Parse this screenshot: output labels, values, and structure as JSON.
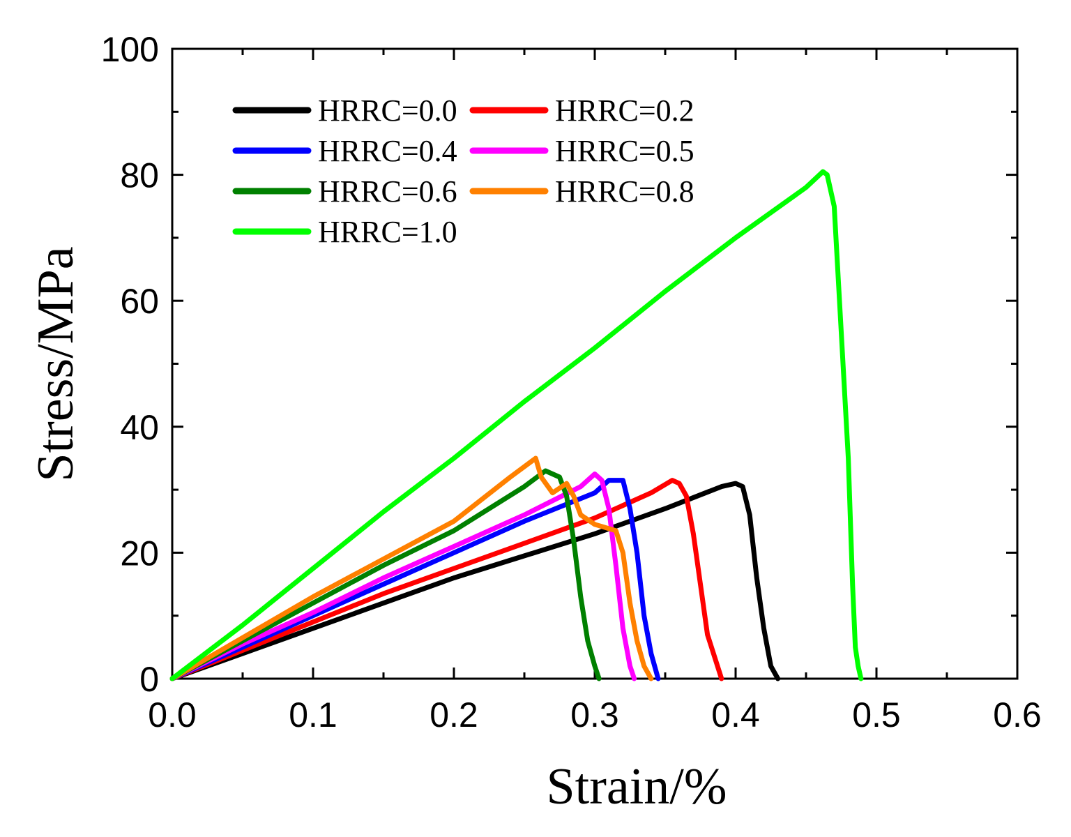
{
  "chart_data": {
    "type": "line",
    "title": "",
    "xlabel": "Strain/%",
    "ylabel": "Stress/MPa",
    "xlim": [
      0.0,
      0.6
    ],
    "ylim": [
      0,
      100
    ],
    "xticks": [
      "0.0",
      "0.1",
      "0.2",
      "0.3",
      "0.4",
      "0.5",
      "0.6"
    ],
    "yticks": [
      "0",
      "20",
      "40",
      "60",
      "80",
      "100"
    ],
    "legend_position": "top-left",
    "series": [
      {
        "name": "HRRC=0.0",
        "color": "#000000",
        "x": [
          0,
          0.05,
          0.1,
          0.15,
          0.2,
          0.25,
          0.3,
          0.35,
          0.39,
          0.4,
          0.405,
          0.41,
          0.415,
          0.42,
          0.425,
          0.43
        ],
        "y": [
          0,
          4,
          8,
          12,
          16,
          19.5,
          23,
          27,
          30.5,
          31,
          30.5,
          26,
          16,
          8,
          2,
          0
        ]
      },
      {
        "name": "HRRC=0.2",
        "color": "#ff0000",
        "x": [
          0,
          0.05,
          0.1,
          0.15,
          0.2,
          0.25,
          0.3,
          0.34,
          0.355,
          0.36,
          0.365,
          0.37,
          0.375,
          0.38,
          0.39
        ],
        "y": [
          0,
          4.5,
          9,
          13.5,
          17.5,
          21.5,
          25.5,
          29.5,
          31.5,
          31,
          29,
          23,
          15,
          7,
          0
        ]
      },
      {
        "name": "HRRC=0.4",
        "color": "#0000ff",
        "x": [
          0,
          0.05,
          0.1,
          0.15,
          0.2,
          0.25,
          0.3,
          0.31,
          0.32,
          0.325,
          0.33,
          0.335,
          0.34,
          0.345
        ],
        "y": [
          0,
          5,
          10,
          15,
          20,
          25,
          29.5,
          31.5,
          31.5,
          27,
          20,
          10,
          4,
          0
        ]
      },
      {
        "name": "HRRC=0.5",
        "color": "#ff00ff",
        "x": [
          0,
          0.05,
          0.1,
          0.15,
          0.2,
          0.25,
          0.29,
          0.3,
          0.305,
          0.31,
          0.315,
          0.32,
          0.325,
          0.328
        ],
        "y": [
          0,
          5.5,
          10.5,
          16,
          21,
          26,
          30.5,
          32.5,
          31.5,
          27,
          18,
          8,
          2,
          0
        ]
      },
      {
        "name": "HRRC=0.6",
        "color": "#008000",
        "x": [
          0,
          0.05,
          0.1,
          0.15,
          0.2,
          0.25,
          0.265,
          0.275,
          0.28,
          0.285,
          0.29,
          0.295,
          0.3,
          0.303
        ],
        "y": [
          0,
          6,
          12,
          18,
          23.5,
          30.5,
          33,
          32,
          29,
          22,
          13,
          6,
          2,
          0
        ]
      },
      {
        "name": "HRRC=0.8",
        "color": "#ff8000",
        "x": [
          0,
          0.05,
          0.1,
          0.15,
          0.2,
          0.24,
          0.258,
          0.262,
          0.27,
          0.28,
          0.285,
          0.29,
          0.3,
          0.315,
          0.32,
          0.325,
          0.33,
          0.335,
          0.34
        ],
        "y": [
          0,
          6.5,
          13,
          19,
          25,
          32,
          35,
          32,
          29.5,
          31,
          29,
          26,
          24.5,
          23.5,
          20,
          12,
          6,
          2,
          0
        ]
      },
      {
        "name": "HRRC=1.0",
        "color": "#00ff00",
        "x": [
          0,
          0.05,
          0.1,
          0.15,
          0.2,
          0.25,
          0.3,
          0.35,
          0.4,
          0.45,
          0.462,
          0.465,
          0.47,
          0.475,
          0.48,
          0.483,
          0.485,
          0.487,
          0.489
        ],
        "y": [
          0,
          8.5,
          17.5,
          26.5,
          35,
          44,
          52.5,
          61.5,
          70,
          78,
          80.5,
          80,
          75,
          55,
          35,
          15,
          5,
          2,
          0
        ]
      }
    ]
  }
}
